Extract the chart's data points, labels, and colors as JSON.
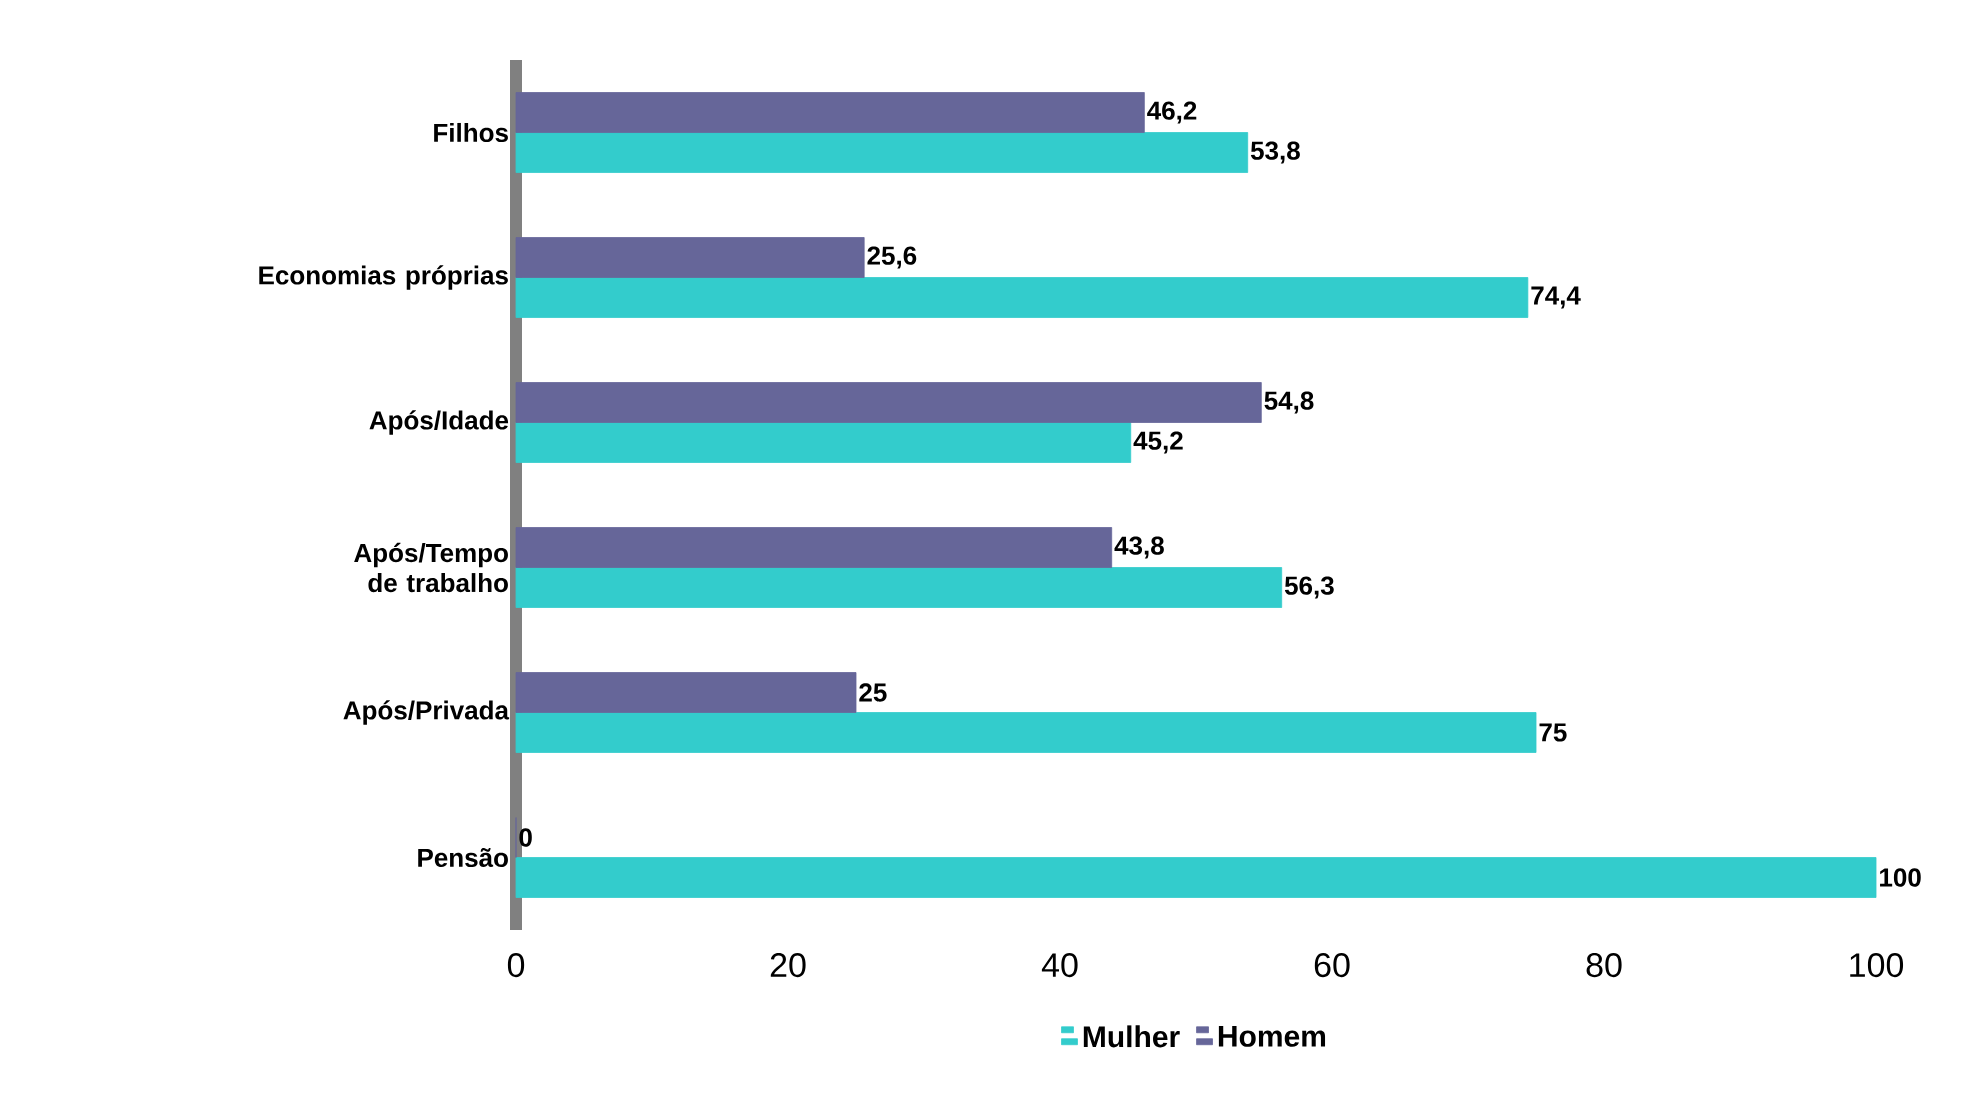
{
  "chart_data": {
    "type": "bar",
    "orientation": "horizontal",
    "categories": [
      "Filhos",
      "Economias próprias",
      "Após/Idade",
      "Após/Tempo de trabalho",
      "Após/Privada",
      "Pensão"
    ],
    "series": [
      {
        "name": "Mulher",
        "color": "#33cccc",
        "values": [
          53.8,
          74.4,
          45.2,
          56.3,
          75,
          100
        ],
        "value_labels": [
          "53,8",
          "74,4",
          "45,2",
          "56,3",
          "75",
          "100"
        ]
      },
      {
        "name": "Homem",
        "color": "#666699",
        "values": [
          46.2,
          25.6,
          54.8,
          43.8,
          25,
          0
        ],
        "value_labels": [
          "46,2",
          "25,6",
          "54,8",
          "43,8",
          "25",
          "0"
        ]
      }
    ],
    "xlim": [
      0,
      100
    ],
    "xticks": [
      0,
      20,
      40,
      60,
      80,
      100
    ],
    "grid": false,
    "legend": "bottom"
  }
}
